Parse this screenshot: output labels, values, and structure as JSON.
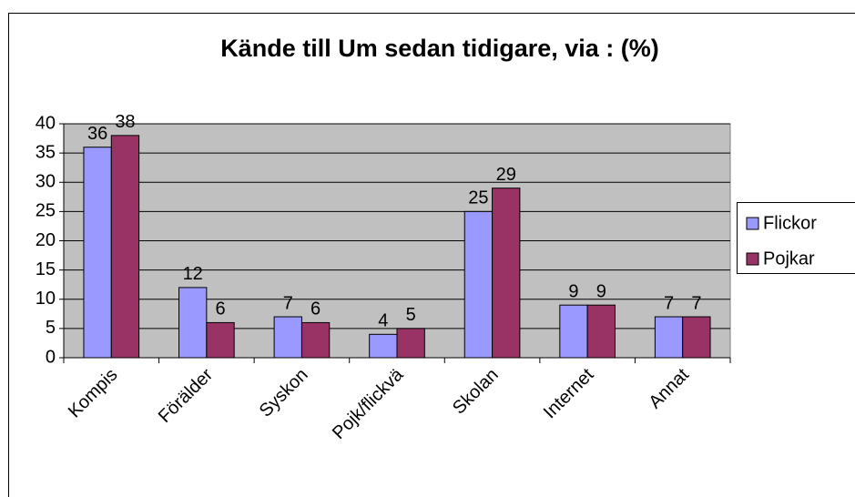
{
  "chart_data": {
    "type": "bar",
    "title": "Kände till Um sedan tidigare, via : (%)",
    "categories": [
      "Kompis",
      "Förälder",
      "Syskon",
      "Pojk/flickvä",
      "Skolan",
      "Internet",
      "Annat"
    ],
    "series": [
      {
        "name": "Flickor",
        "color": "#9999ff",
        "values": [
          36,
          12,
          7,
          4,
          25,
          9,
          7
        ]
      },
      {
        "name": "Pojkar",
        "color": "#993366",
        "values": [
          38,
          6,
          6,
          5,
          29,
          9,
          7
        ]
      }
    ],
    "ylim": [
      0,
      40
    ],
    "yticks": [
      0,
      5,
      10,
      15,
      20,
      25,
      30,
      35,
      40
    ],
    "grid": true,
    "legend": "right",
    "plot_background": "#c0c0c0"
  }
}
